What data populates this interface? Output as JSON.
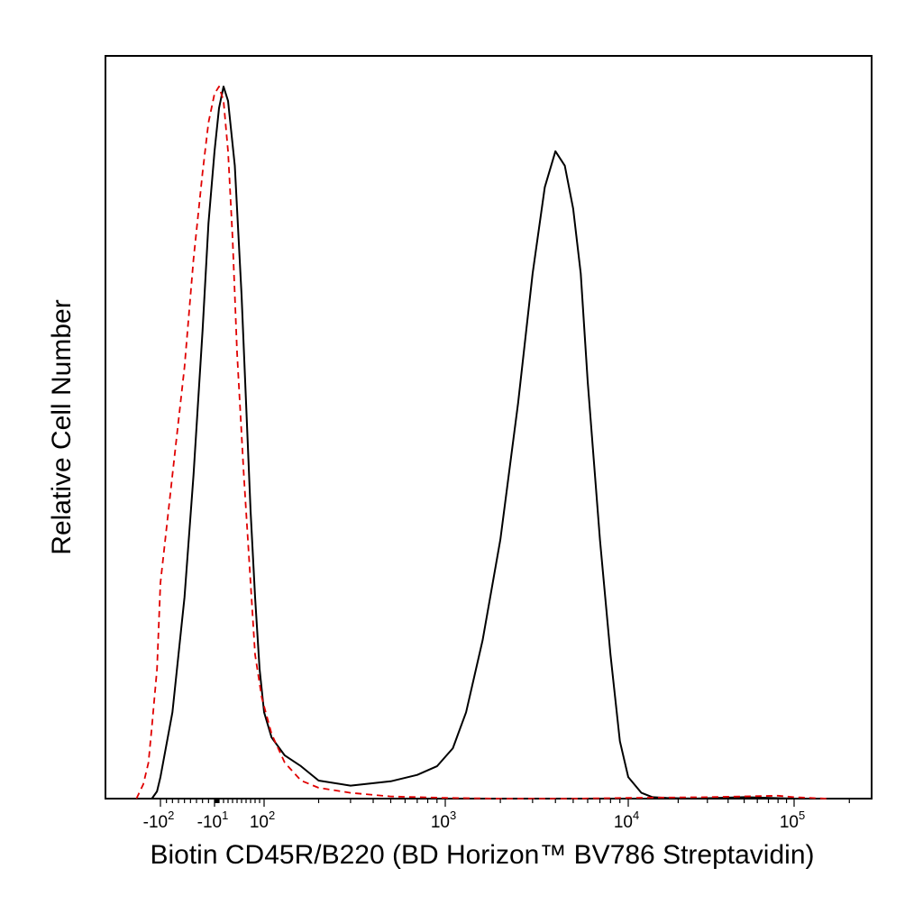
{
  "chart_data": {
    "type": "line",
    "title": "",
    "xlabel": "Biotin CD45R/B220 (BD Horizon™ BV786 Streptavidin)",
    "ylabel": "Relative Cell Number",
    "x_scale": "biexponential",
    "xlim": [
      -300,
      250000
    ],
    "ylim": [
      0,
      1.0
    ],
    "grid": false,
    "x_ticks": [
      {
        "value": -100,
        "base": "-10",
        "exp": "2"
      },
      {
        "value": -10,
        "base": "-10",
        "exp": "1"
      },
      {
        "value": 100,
        "base": "10",
        "exp": "2"
      },
      {
        "value": 1000,
        "base": "10",
        "exp": "3"
      },
      {
        "value": 10000,
        "base": "10",
        "exp": "4"
      },
      {
        "value": 100000,
        "base": "10",
        "exp": "5"
      }
    ],
    "series": [
      {
        "color": "#000000",
        "dash": "solid",
        "x": [
          -150,
          -120,
          -100,
          -80,
          -60,
          -45,
          -30,
          -20,
          -10,
          0,
          10,
          20,
          35,
          50,
          60,
          70,
          80,
          90,
          100,
          110,
          130,
          160,
          200,
          300,
          500,
          700,
          900,
          1100,
          1300,
          1600,
          2000,
          2500,
          3000,
          3500,
          4000,
          4500,
          5000,
          5500,
          6000,
          7000,
          8000,
          9000,
          10000,
          12000,
          14000,
          17000,
          25000,
          50000,
          100000,
          200000
        ],
        "y": [
          0.0,
          0.01,
          0.03,
          0.12,
          0.28,
          0.45,
          0.65,
          0.8,
          0.9,
          0.96,
          0.99,
          0.97,
          0.88,
          0.7,
          0.55,
          0.4,
          0.28,
          0.18,
          0.12,
          0.085,
          0.06,
          0.045,
          0.025,
          0.018,
          0.024,
          0.033,
          0.045,
          0.07,
          0.12,
          0.22,
          0.36,
          0.55,
          0.73,
          0.85,
          0.9,
          0.88,
          0.82,
          0.73,
          0.58,
          0.36,
          0.2,
          0.08,
          0.03,
          0.008,
          0.002,
          0.001,
          0.0,
          0.002,
          0.0,
          0.0
        ]
      },
      {
        "color": "#e00000",
        "dash": "dashed",
        "x": [
          -240,
          -200,
          -170,
          -150,
          -120,
          -100,
          -80,
          -60,
          -45,
          -30,
          -20,
          -10,
          0,
          10,
          20,
          30,
          40,
          55,
          70,
          80,
          95,
          110,
          130,
          160,
          200,
          300,
          500,
          1000,
          2000,
          5000,
          10000,
          30000,
          80000,
          100000,
          150000
        ],
        "y": [
          0.0,
          0.02,
          0.05,
          0.1,
          0.18,
          0.3,
          0.45,
          0.6,
          0.75,
          0.87,
          0.94,
          0.98,
          0.99,
          0.97,
          0.9,
          0.78,
          0.62,
          0.45,
          0.3,
          0.2,
          0.14,
          0.09,
          0.05,
          0.025,
          0.015,
          0.008,
          0.003,
          0.001,
          0.0,
          0.0,
          0.001,
          0.002,
          0.004,
          0.002,
          0.0
        ]
      }
    ]
  }
}
